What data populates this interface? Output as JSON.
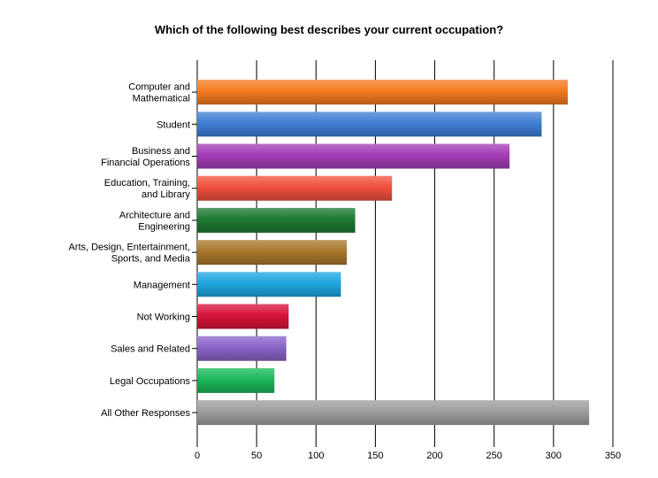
{
  "chart_data": {
    "type": "bar",
    "orientation": "horizontal",
    "title": "Which of the following best describes your current occupation?",
    "xlabel": "",
    "ylabel": "",
    "xlim": [
      0,
      350
    ],
    "ticks": [
      0,
      50,
      100,
      150,
      200,
      250,
      300,
      350
    ],
    "grid": true,
    "categories": [
      [
        "Computer and",
        "Mathematical"
      ],
      [
        "Student"
      ],
      [
        "Business and",
        "Financial Operations"
      ],
      [
        "Education, Training,",
        "and Library"
      ],
      [
        "Architecture and",
        "Engineering"
      ],
      [
        "Arts, Design, Entertainment,",
        "Sports, and Media"
      ],
      [
        "Management"
      ],
      [
        "Not Working"
      ],
      [
        "Sales and Related"
      ],
      [
        "Legal Occupations"
      ],
      [
        "All Other Responses"
      ]
    ],
    "values": [
      312,
      290,
      263,
      164,
      133,
      126,
      121,
      77,
      75,
      65,
      330
    ],
    "colors": [
      "#f47a20",
      "#3f7fd6",
      "#a43cb8",
      "#f0503c",
      "#1e7a30",
      "#a8782c",
      "#1ea6e0",
      "#d8143a",
      "#8a64c8",
      "#1ab858",
      "#9e9e9e"
    ]
  }
}
